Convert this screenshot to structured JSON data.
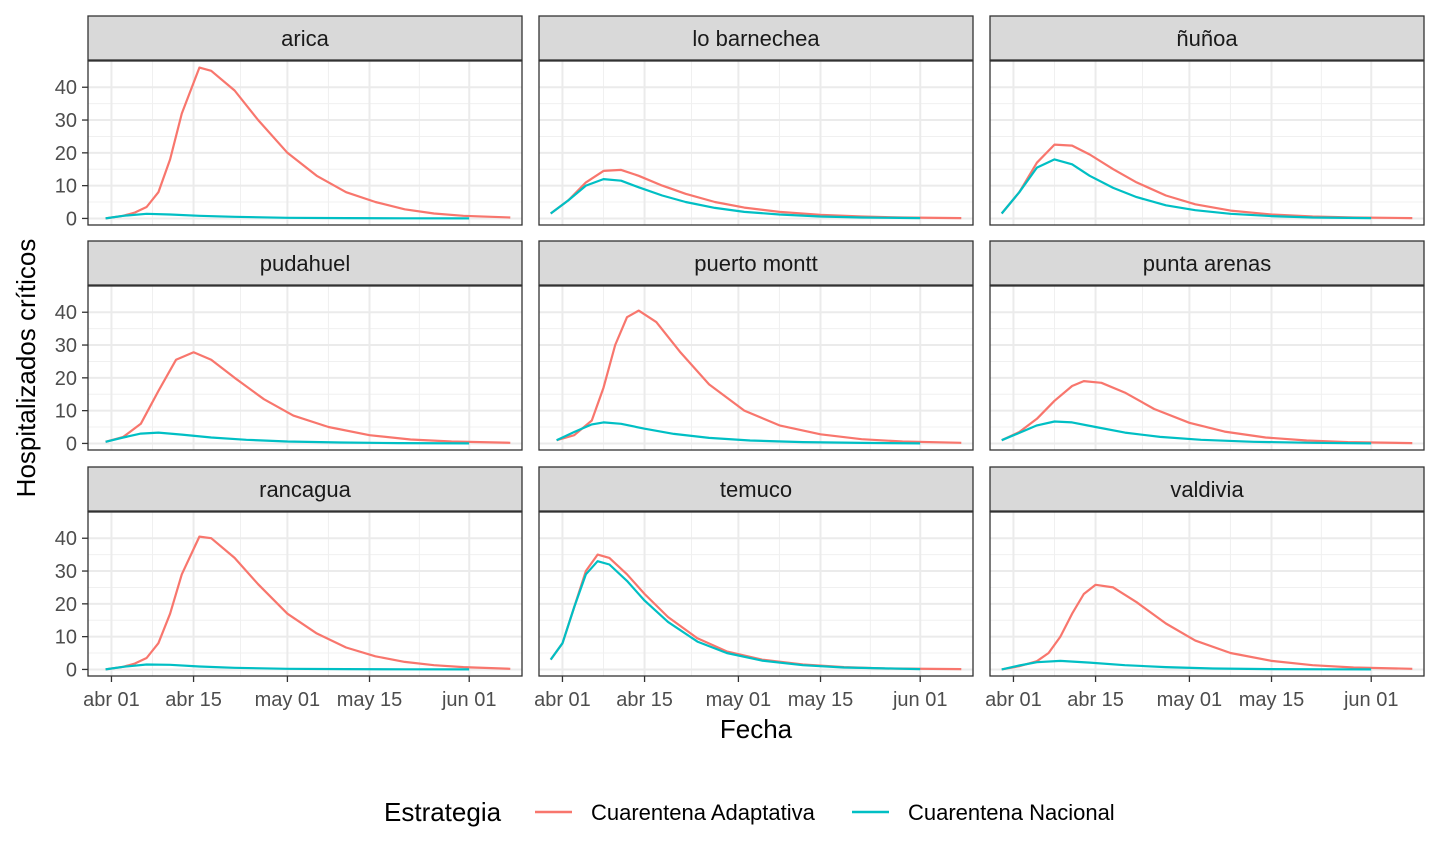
{
  "chart_data": {
    "type": "line",
    "layout": "facet-grid 3x3",
    "xlabel": "Fecha",
    "ylabel": "Hospitalizados críticos",
    "x_ticks": [
      "abr 01",
      "abr 15",
      "may 01",
      "may 15",
      "jun 01"
    ],
    "x_tick_dates": [
      "2020-04-01",
      "2020-04-15",
      "2020-05-01",
      "2020-05-15",
      "2020-06-01"
    ],
    "y_ticks": [
      "0",
      "10",
      "20",
      "30",
      "40"
    ],
    "y_tick_values": [
      0,
      10,
      20,
      30,
      40
    ],
    "ylim": [
      -2,
      48
    ],
    "xlim": [
      "2020-03-28",
      "2020-06-10"
    ],
    "grid": true,
    "legend": {
      "position": "bottom",
      "title": "Estrategia",
      "entries": [
        {
          "name": "Cuarentena Adaptativa",
          "color": "#F8766D"
        },
        {
          "name": "Cuarentena Nacional",
          "color": "#00BFC4"
        }
      ]
    },
    "series_colors": {
      "adaptativa": "#F8766D",
      "nacional": "#00BFC4"
    },
    "panels": [
      {
        "title": "arica",
        "adaptativa": {
          "x": [
            "2020-03-31",
            "2020-04-03",
            "2020-04-05",
            "2020-04-07",
            "2020-04-09",
            "2020-04-11",
            "2020-04-13",
            "2020-04-16",
            "2020-04-18",
            "2020-04-22",
            "2020-04-26",
            "2020-05-01",
            "2020-05-06",
            "2020-05-11",
            "2020-05-16",
            "2020-05-21",
            "2020-05-26",
            "2020-05-31",
            "2020-06-08"
          ],
          "y": [
            0,
            0.8,
            1.8,
            3.5,
            8,
            18,
            32,
            46,
            45,
            39,
            30,
            20,
            13,
            8,
            5,
            2.8,
            1.5,
            0.8,
            0.3
          ]
        },
        "nacional": {
          "x": [
            "2020-03-31",
            "2020-04-03",
            "2020-04-07",
            "2020-04-11",
            "2020-04-16",
            "2020-04-22",
            "2020-05-01",
            "2020-05-11",
            "2020-05-21",
            "2020-06-01"
          ],
          "y": [
            0,
            0.8,
            1.4,
            1.2,
            0.8,
            0.5,
            0.2,
            0.1,
            0.05,
            0
          ]
        }
      },
      {
        "title": "lo barnechea",
        "adaptativa": {
          "x": [
            "2020-03-30",
            "2020-04-02",
            "2020-04-05",
            "2020-04-08",
            "2020-04-11",
            "2020-04-14",
            "2020-04-18",
            "2020-04-22",
            "2020-04-27",
            "2020-05-02",
            "2020-05-08",
            "2020-05-15",
            "2020-05-22",
            "2020-05-29",
            "2020-06-08"
          ],
          "y": [
            1.5,
            5.5,
            11,
            14.5,
            14.8,
            13,
            10,
            7.5,
            5,
            3.3,
            2,
            1.1,
            0.6,
            0.3,
            0.1
          ]
        },
        "nacional": {
          "x": [
            "2020-03-30",
            "2020-04-02",
            "2020-04-05",
            "2020-04-08",
            "2020-04-11",
            "2020-04-14",
            "2020-04-18",
            "2020-04-22",
            "2020-04-27",
            "2020-05-02",
            "2020-05-08",
            "2020-05-15",
            "2020-05-22",
            "2020-06-01"
          ],
          "y": [
            1.5,
            5.5,
            10,
            12,
            11.5,
            9.5,
            7,
            5,
            3.2,
            2,
            1.2,
            0.6,
            0.3,
            0.1
          ]
        }
      },
      {
        "title": "ñuñoa",
        "adaptativa": {
          "x": [
            "2020-03-30",
            "2020-04-02",
            "2020-04-05",
            "2020-04-08",
            "2020-04-11",
            "2020-04-14",
            "2020-04-18",
            "2020-04-22",
            "2020-04-27",
            "2020-05-02",
            "2020-05-08",
            "2020-05-15",
            "2020-05-22",
            "2020-05-29",
            "2020-06-08"
          ],
          "y": [
            1.5,
            8,
            17,
            22.5,
            22.2,
            19.5,
            15,
            11,
            7,
            4.3,
            2.4,
            1.2,
            0.6,
            0.3,
            0.1
          ]
        },
        "nacional": {
          "x": [
            "2020-03-30",
            "2020-04-02",
            "2020-04-05",
            "2020-04-08",
            "2020-04-11",
            "2020-04-14",
            "2020-04-18",
            "2020-04-22",
            "2020-04-27",
            "2020-05-02",
            "2020-05-08",
            "2020-05-15",
            "2020-05-22",
            "2020-06-01"
          ],
          "y": [
            1.5,
            8,
            15.5,
            18,
            16.5,
            13,
            9.3,
            6.5,
            4,
            2.5,
            1.4,
            0.7,
            0.3,
            0.1
          ]
        }
      },
      {
        "title": "pudahuel",
        "adaptativa": {
          "x": [
            "2020-03-31",
            "2020-04-03",
            "2020-04-06",
            "2020-04-09",
            "2020-04-12",
            "2020-04-15",
            "2020-04-18",
            "2020-04-22",
            "2020-04-27",
            "2020-05-02",
            "2020-05-08",
            "2020-05-15",
            "2020-05-22",
            "2020-05-29",
            "2020-06-08"
          ],
          "y": [
            0.5,
            2,
            6,
            16,
            25.5,
            27.8,
            25.5,
            20,
            13.5,
            8.5,
            5,
            2.5,
            1.2,
            0.6,
            0.2
          ]
        },
        "nacional": {
          "x": [
            "2020-03-31",
            "2020-04-03",
            "2020-04-06",
            "2020-04-09",
            "2020-04-13",
            "2020-04-18",
            "2020-04-24",
            "2020-05-01",
            "2020-05-10",
            "2020-05-20",
            "2020-06-01"
          ],
          "y": [
            0.5,
            1.8,
            3,
            3.3,
            2.7,
            1.8,
            1.1,
            0.6,
            0.3,
            0.1,
            0
          ]
        }
      },
      {
        "title": "puerto montt",
        "adaptativa": {
          "x": [
            "2020-03-31",
            "2020-04-03",
            "2020-04-06",
            "2020-04-08",
            "2020-04-10",
            "2020-04-12",
            "2020-04-14",
            "2020-04-17",
            "2020-04-21",
            "2020-04-26",
            "2020-05-02",
            "2020-05-08",
            "2020-05-15",
            "2020-05-22",
            "2020-05-29",
            "2020-06-08"
          ],
          "y": [
            1,
            2.5,
            7,
            17,
            30,
            38.5,
            40.5,
            37,
            28,
            18,
            10,
            5.5,
            2.8,
            1.3,
            0.6,
            0.2
          ]
        },
        "nacional": {
          "x": [
            "2020-03-31",
            "2020-04-03",
            "2020-04-06",
            "2020-04-08",
            "2020-04-11",
            "2020-04-15",
            "2020-04-20",
            "2020-04-26",
            "2020-05-03",
            "2020-05-12",
            "2020-05-22",
            "2020-06-01"
          ],
          "y": [
            1,
            3.5,
            5.8,
            6.4,
            6,
            4.5,
            2.9,
            1.7,
            0.9,
            0.4,
            0.15,
            0
          ]
        }
      },
      {
        "title": "punta arenas",
        "adaptativa": {
          "x": [
            "2020-03-30",
            "2020-04-02",
            "2020-04-05",
            "2020-04-08",
            "2020-04-11",
            "2020-04-13",
            "2020-04-16",
            "2020-04-20",
            "2020-04-25",
            "2020-05-01",
            "2020-05-07",
            "2020-05-14",
            "2020-05-21",
            "2020-05-28",
            "2020-06-08"
          ],
          "y": [
            1,
            3.5,
            7.5,
            13,
            17.5,
            19,
            18.5,
            15.5,
            10.5,
            6.3,
            3.6,
            1.8,
            0.9,
            0.4,
            0.1
          ]
        },
        "nacional": {
          "x": [
            "2020-03-30",
            "2020-04-02",
            "2020-04-05",
            "2020-04-08",
            "2020-04-11",
            "2020-04-15",
            "2020-04-20",
            "2020-04-26",
            "2020-05-03",
            "2020-05-12",
            "2020-05-22",
            "2020-06-01"
          ],
          "y": [
            1,
            3.2,
            5.5,
            6.7,
            6.4,
            5,
            3.3,
            2,
            1.1,
            0.5,
            0.2,
            0
          ]
        }
      },
      {
        "title": "rancagua",
        "adaptativa": {
          "x": [
            "2020-03-31",
            "2020-04-03",
            "2020-04-05",
            "2020-04-07",
            "2020-04-09",
            "2020-04-11",
            "2020-04-13",
            "2020-04-16",
            "2020-04-18",
            "2020-04-22",
            "2020-04-26",
            "2020-05-01",
            "2020-05-06",
            "2020-05-11",
            "2020-05-16",
            "2020-05-21",
            "2020-05-26",
            "2020-05-31",
            "2020-06-08"
          ],
          "y": [
            0,
            0.8,
            1.8,
            3.5,
            8,
            17,
            29,
            40.5,
            40,
            34,
            26,
            17,
            11,
            6.7,
            4,
            2.3,
            1.3,
            0.7,
            0.2
          ]
        },
        "nacional": {
          "x": [
            "2020-03-31",
            "2020-04-03",
            "2020-04-07",
            "2020-04-11",
            "2020-04-16",
            "2020-04-22",
            "2020-05-01",
            "2020-05-11",
            "2020-05-21",
            "2020-06-01"
          ],
          "y": [
            0,
            0.8,
            1.5,
            1.4,
            0.9,
            0.5,
            0.2,
            0.1,
            0.05,
            0
          ]
        }
      },
      {
        "title": "temuco",
        "adaptativa": {
          "x": [
            "2020-03-30",
            "2020-04-01",
            "2020-04-03",
            "2020-04-05",
            "2020-04-07",
            "2020-04-09",
            "2020-04-12",
            "2020-04-15",
            "2020-04-19",
            "2020-04-24",
            "2020-04-29",
            "2020-05-05",
            "2020-05-12",
            "2020-05-19",
            "2020-05-26",
            "2020-06-08"
          ],
          "y": [
            3,
            8,
            19,
            30,
            35,
            34,
            29,
            23,
            16,
            9.5,
            5.5,
            3,
            1.5,
            0.7,
            0.3,
            0.1
          ]
        },
        "nacional": {
          "x": [
            "2020-03-30",
            "2020-04-01",
            "2020-04-03",
            "2020-04-05",
            "2020-04-07",
            "2020-04-09",
            "2020-04-12",
            "2020-04-15",
            "2020-04-19",
            "2020-04-24",
            "2020-04-29",
            "2020-05-05",
            "2020-05-12",
            "2020-05-19",
            "2020-06-01"
          ],
          "y": [
            3,
            8,
            19,
            29,
            33,
            32,
            27,
            21,
            14.5,
            8.5,
            5,
            2.7,
            1.3,
            0.6,
            0.1
          ]
        }
      },
      {
        "title": "valdivia",
        "adaptativa": {
          "x": [
            "2020-03-30",
            "2020-04-02",
            "2020-04-05",
            "2020-04-07",
            "2020-04-09",
            "2020-04-11",
            "2020-04-13",
            "2020-04-15",
            "2020-04-18",
            "2020-04-22",
            "2020-04-27",
            "2020-05-02",
            "2020-05-08",
            "2020-05-15",
            "2020-05-22",
            "2020-05-29",
            "2020-06-08"
          ],
          "y": [
            0,
            1,
            2.5,
            5,
            10,
            17,
            23,
            25.8,
            25,
            20.5,
            14,
            8.8,
            5,
            2.6,
            1.3,
            0.6,
            0.2
          ]
        },
        "nacional": {
          "x": [
            "2020-03-30",
            "2020-04-02",
            "2020-04-05",
            "2020-04-09",
            "2020-04-14",
            "2020-04-20",
            "2020-04-27",
            "2020-05-05",
            "2020-05-15",
            "2020-05-25",
            "2020-06-01"
          ],
          "y": [
            0,
            1.2,
            2.2,
            2.6,
            2.1,
            1.3,
            0.7,
            0.3,
            0.1,
            0.05,
            0
          ]
        }
      }
    ]
  }
}
